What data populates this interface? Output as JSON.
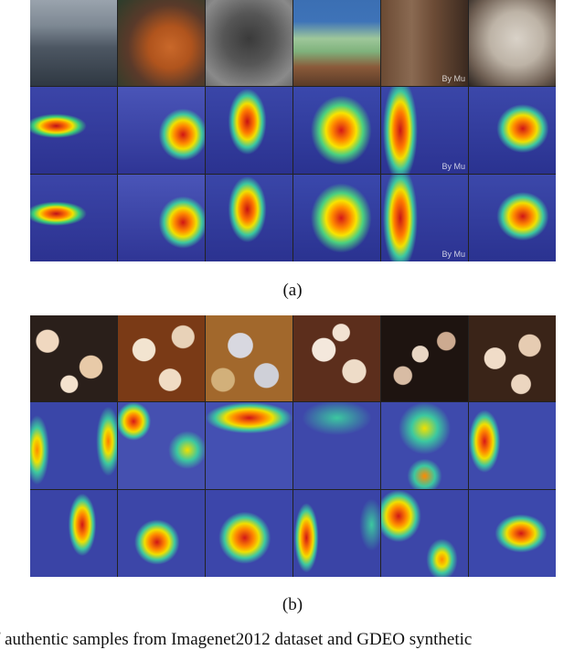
{
  "figure": {
    "label_a": "(a)",
    "label_b": "(b)",
    "caption_visible": "f authentic samples from Imagenet2012 dataset and GDEO synthetic"
  },
  "watermarks": {
    "hawk_text": "By Mu"
  }
}
